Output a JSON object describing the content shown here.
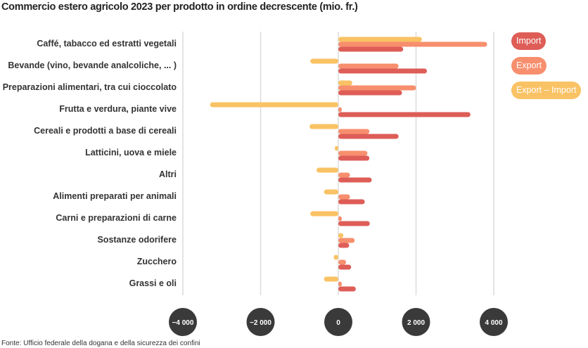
{
  "title": "Commercio estero agricolo 2023 per prodotto in ordine decrescente (mio. fr.)",
  "source": "Fonte: Ufficio federale della dogana e della sicurezza dei confini",
  "chart_data": {
    "type": "bar",
    "orientation": "horizontal",
    "title": "Commercio estero agricolo 2023 per prodotto in ordine decrescente (mio. fr.)",
    "categories": [
      "Caffé, tabacco ed estratti vegetali",
      "Bevande (vino, bevande analcoliche, ... )",
      "Preparazioni alimentari, tra cui cioccolato",
      "Frutta e verdura, piante vive",
      "Cereali e prodotti a base di cereali",
      "Latticini, uova e miele",
      "Altri",
      "Alimenti preparati per animali",
      "Carni e preparazioni di carne",
      "Sostanze odorifere",
      "Zucchero",
      "Grassi e oli"
    ],
    "series": [
      {
        "name": "Export – Import",
        "color": "#f9c264",
        "values": [
          2150,
          -720,
          360,
          -3300,
          -740,
          -50,
          -560,
          -370,
          -720,
          130,
          -120,
          -370
        ]
      },
      {
        "name": "Export",
        "color": "#f78f6e",
        "values": [
          3830,
          1550,
          2000,
          90,
          800,
          750,
          300,
          300,
          80,
          420,
          200,
          80
        ]
      },
      {
        "name": "Import",
        "color": "#de5d57",
        "values": [
          1670,
          2280,
          1640,
          3400,
          1550,
          800,
          860,
          680,
          810,
          280,
          330,
          450
        ]
      }
    ],
    "xlim": [
      -4000,
      4000
    ],
    "xticks": [
      -4000,
      -2000,
      0,
      2000,
      4000
    ],
    "xtick_labels": [
      "−4 000",
      "−2 000",
      "0",
      "2 000",
      "4 000"
    ],
    "grid": true,
    "legend": "top-right"
  }
}
